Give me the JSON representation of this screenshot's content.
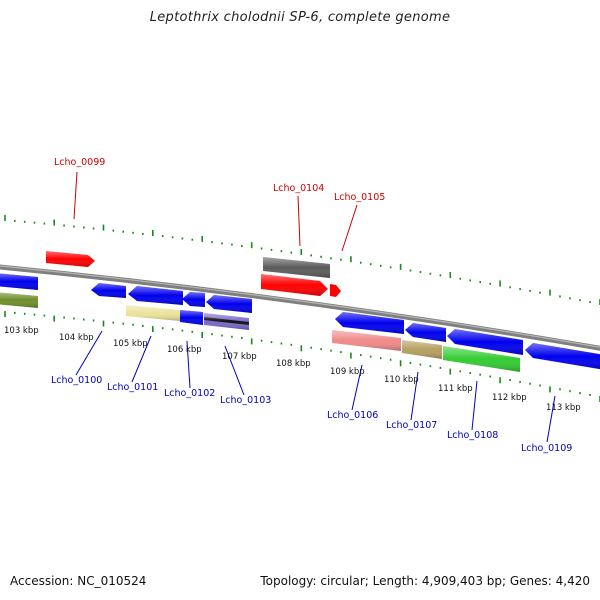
{
  "title": "Leptothrix cholodnii SP-6, complete genome",
  "footer": {
    "accession": "Accession: NC_010524",
    "summary": "Topology: circular; Length: 4,909,403 bp; Genes: 4,420"
  },
  "colors": {
    "backbone": "#7f7f7f",
    "ticks": "#1a8a1a",
    "label_top": "#cc0000",
    "label_bottom": "#0000bb"
  },
  "ticks": [
    {
      "kbp": 103,
      "label": "103 kbp"
    },
    {
      "kbp": 104,
      "label": "104 kbp"
    },
    {
      "kbp": 105,
      "label": "105 kbp"
    },
    {
      "kbp": 106,
      "label": "106 kbp"
    },
    {
      "kbp": 107,
      "label": "107 kbp"
    },
    {
      "kbp": 108,
      "label": "108 kbp"
    },
    {
      "kbp": 109,
      "label": "109 kbp"
    },
    {
      "kbp": 110,
      "label": "110 kbp"
    },
    {
      "kbp": 111,
      "label": "111 kbp"
    },
    {
      "kbp": 112,
      "label": "112 kbp"
    },
    {
      "kbp": 113,
      "label": "113 kbp"
    }
  ],
  "gene_labels": [
    {
      "id": "Lcho_0099",
      "side": "top"
    },
    {
      "id": "Lcho_0104",
      "side": "top"
    },
    {
      "id": "Lcho_0105",
      "side": "top"
    },
    {
      "id": "Lcho_0100",
      "side": "bottom"
    },
    {
      "id": "Lcho_0101",
      "side": "bottom"
    },
    {
      "id": "Lcho_0102",
      "side": "bottom"
    },
    {
      "id": "Lcho_0103",
      "side": "bottom"
    },
    {
      "id": "Lcho_0106",
      "side": "bottom"
    },
    {
      "id": "Lcho_0107",
      "side": "bottom"
    },
    {
      "id": "Lcho_0108",
      "side": "bottom"
    },
    {
      "id": "Lcho_0109",
      "side": "bottom"
    }
  ]
}
